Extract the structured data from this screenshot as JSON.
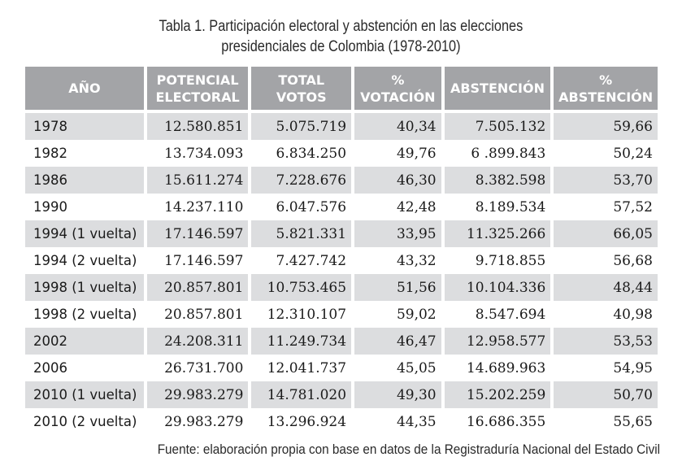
{
  "caption": {
    "line1": "Tabla 1. Participación electoral y abstención en las elecciones",
    "line2": "presidenciales de Colombia (1978-2010)"
  },
  "table": {
    "headers": [
      [
        "AÑO"
      ],
      [
        "POTENCIAL",
        "ELECTORAL"
      ],
      [
        "TOTAL",
        "VOTOS"
      ],
      [
        "%",
        "VOTACIÓN"
      ],
      [
        "ABSTENCIÓN"
      ],
      [
        "%",
        "ABSTENCIÓN"
      ]
    ],
    "rows": [
      [
        "1978",
        "12.580.851",
        "5.075.719",
        "40,34",
        "7.505.132",
        "59,66"
      ],
      [
        "1982",
        "13.734.093",
        "6.834.250",
        "49,76",
        "6 .899.843",
        "50,24"
      ],
      [
        "1986",
        "15.611.274",
        "7.228.676",
        "46,30",
        "8.382.598",
        "53,70"
      ],
      [
        "1990",
        "14.237.110",
        "6.047.576",
        "42,48",
        "8.189.534",
        "57,52"
      ],
      [
        "1994 (1 vuelta)",
        "17.146.597",
        "5.821.331",
        "33,95",
        "11.325.266",
        "66,05"
      ],
      [
        "1994 (2 vuelta)",
        "17.146.597",
        "7.427.742",
        "43,32",
        "9.718.855",
        "56,68"
      ],
      [
        "1998 (1 vuelta)",
        "20.857.801",
        "10.753.465",
        "51,56",
        "10.104.336",
        "48,44"
      ],
      [
        "1998 (2 vuelta)",
        "20.857.801",
        "12.310.107",
        "59,02",
        "8.547.694",
        "40,98"
      ],
      [
        "2002",
        "24.208.311",
        "11.249.734",
        "46,47",
        "12.958.577",
        "53,53"
      ],
      [
        "2006",
        "26.731.700",
        "12.041.737",
        "45,05",
        "14.689.963",
        "54,95"
      ],
      [
        "2010 (1 vuelta)",
        "29.983.279",
        "14.781.020",
        "49,30",
        "15.202.259",
        "50,70"
      ],
      [
        "2010 (2 vuelta)",
        "29.983.279",
        "13.296.924",
        "44,35",
        "16.686.355",
        "55,65"
      ]
    ]
  },
  "source": "Fuente: elaboración propia con base en datos de la Registraduría Nacional del Estado Civil",
  "colors": {
    "header_bg": "#a3a4a7",
    "header_text": "#ffffff",
    "row_shade": "#dcdddf",
    "text": "#1a1a1a"
  }
}
